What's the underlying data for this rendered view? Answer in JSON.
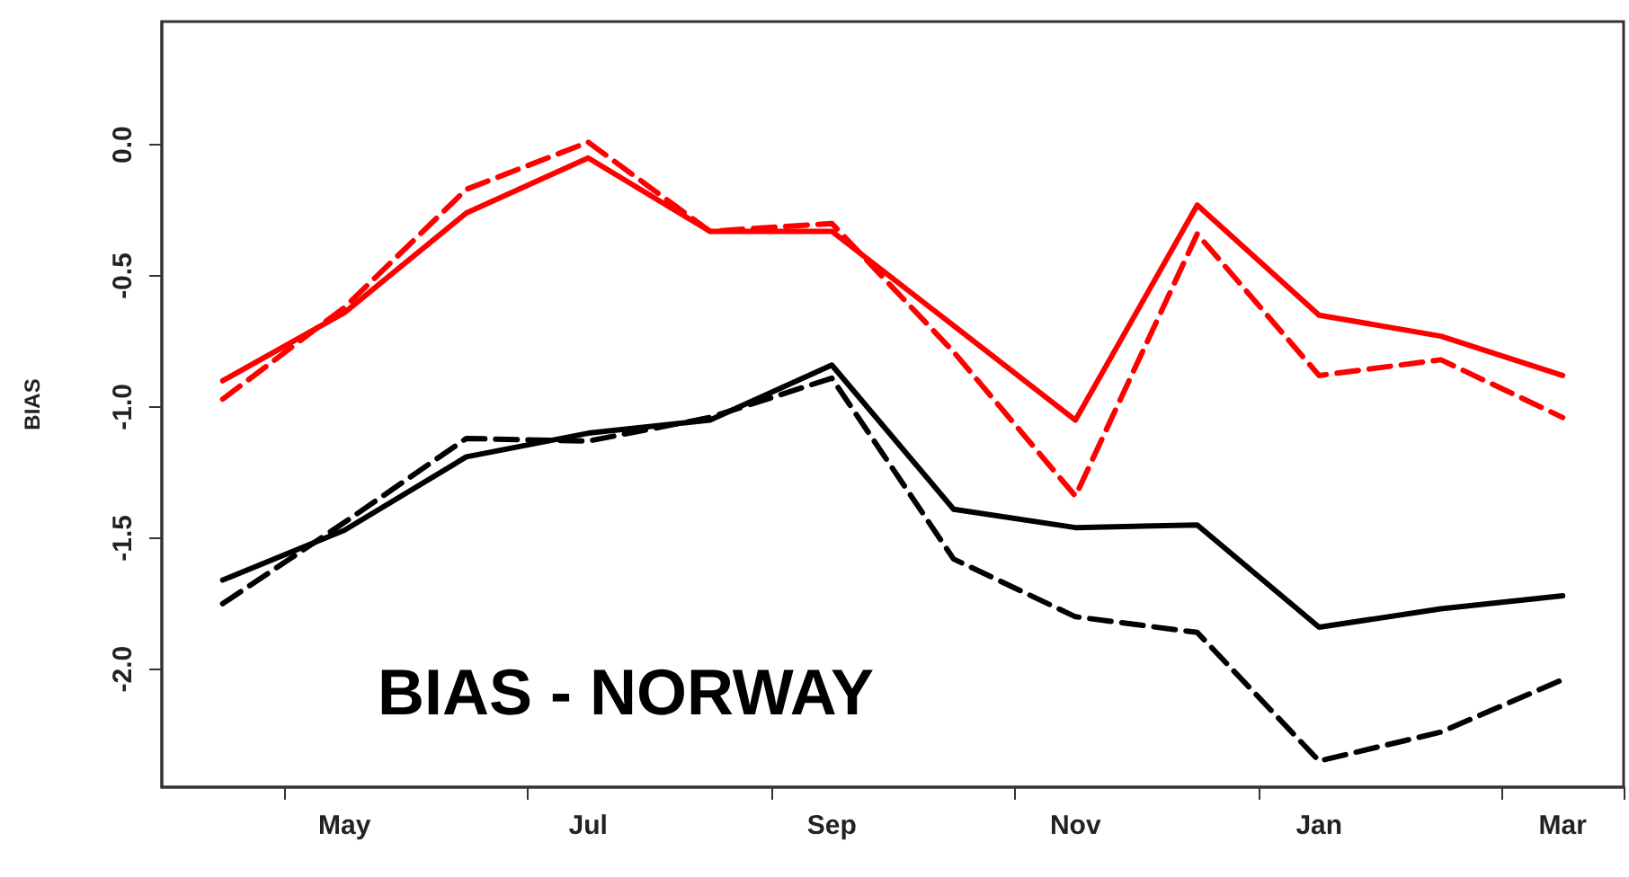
{
  "chart_data": {
    "type": "line",
    "title": "BIAS - NORWAY",
    "ylabel": "BIAS",
    "categories": [
      null,
      "May",
      null,
      "Jul",
      null,
      "Sep",
      null,
      "Nov",
      null,
      "Jan",
      null,
      "Mar"
    ],
    "series": [
      {
        "color": "#ff0000",
        "line_style": "solid",
        "values": [
          -0.9,
          -0.64,
          -0.26,
          -0.05,
          -0.33,
          -0.33,
          -0.69,
          -1.05,
          -0.23,
          -0.65,
          -0.73,
          -0.88
        ]
      },
      {
        "color": "#ff0000",
        "line_style": "dashed",
        "values": [
          -0.97,
          -0.62,
          -0.17,
          0.01,
          -0.33,
          -0.3,
          -0.79,
          -1.34,
          -0.34,
          -0.88,
          -0.82,
          -1.04
        ]
      },
      {
        "color": "#000000",
        "line_style": "solid",
        "values": [
          -1.66,
          -1.47,
          -1.19,
          -1.1,
          -1.05,
          -0.84,
          -1.39,
          -1.46,
          -1.45,
          -1.84,
          -1.77,
          -1.72
        ]
      },
      {
        "color": "#000000",
        "line_style": "dashed",
        "values": [
          -1.75,
          -1.44,
          -1.12,
          -1.13,
          -1.04,
          -0.89,
          -1.58,
          -1.8,
          -1.86,
          -2.35,
          -2.24,
          -2.04
        ]
      }
    ],
    "ylim": [
      -2.45,
      0.47
    ],
    "yticks": [
      {
        "value": -2.0,
        "label": "-2.0"
      },
      {
        "value": -1.5,
        "label": "-1.5"
      },
      {
        "value": -1.0,
        "label": "-1.0"
      },
      {
        "value": -0.5,
        "label": "-0.5"
      },
      {
        "value": 0,
        "label": "0.0"
      }
    ],
    "grid": false,
    "marker": "none"
  }
}
